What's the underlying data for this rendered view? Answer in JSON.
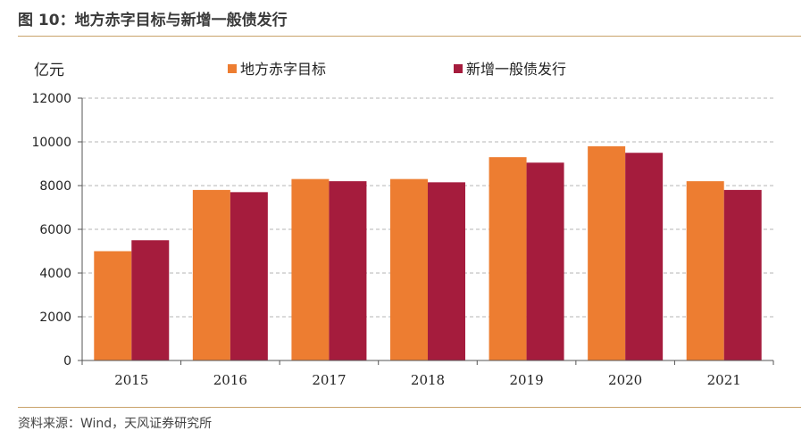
{
  "figure_title": "图 10：地方赤字目标与新增一般债发行",
  "source_text": "资料来源：Wind，天风证券研究所",
  "chart_data": {
    "type": "bar",
    "title": "",
    "xlabel": "",
    "ylabel": "亿元",
    "ylim": [
      0,
      12000
    ],
    "yticks": [
      0,
      2000,
      4000,
      6000,
      8000,
      10000,
      12000
    ],
    "grid": true,
    "legend_position": "top",
    "categories": [
      "2015",
      "2016",
      "2017",
      "2018",
      "2019",
      "2020",
      "2021"
    ],
    "series": [
      {
        "name": "地方赤字目标",
        "color": "#ED7D31",
        "values": [
          5000,
          7800,
          8300,
          8300,
          9300,
          9800,
          8200
        ]
      },
      {
        "name": "新增一般债发行",
        "color": "#A51C3D",
        "values": [
          5500,
          7700,
          8200,
          8150,
          9050,
          9500,
          7800
        ]
      }
    ]
  }
}
